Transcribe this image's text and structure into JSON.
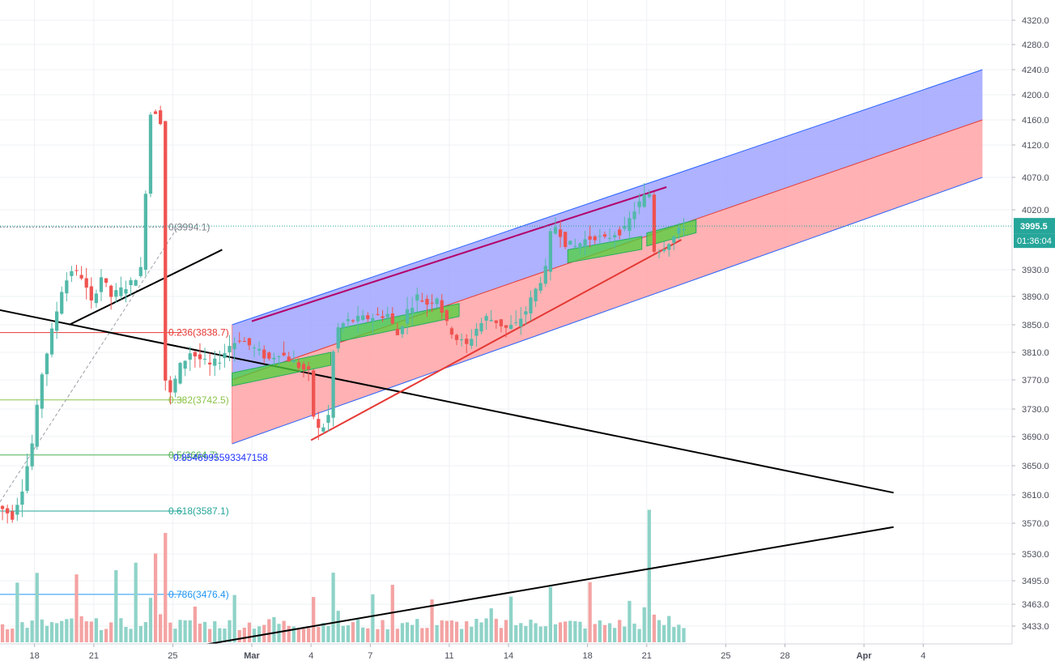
{
  "chart_data": {
    "type": "candlestick",
    "title": "",
    "xlabel": "",
    "ylabel": "",
    "x_tick_labels": [
      "18",
      "21",
      "25",
      "Mar",
      "4",
      "7",
      "11",
      "14",
      "18",
      "21",
      "25",
      "28",
      "Apr",
      "4"
    ],
    "x_tick_dates": [
      "2019-02-18",
      "2019-02-21",
      "2019-02-25",
      "2019-03-01",
      "2019-03-04",
      "2019-03-07",
      "2019-03-11",
      "2019-03-14",
      "2019-03-18",
      "2019-03-21",
      "2019-03-25",
      "2019-03-28",
      "2019-04-01",
      "2019-04-04"
    ],
    "y_ticks": [
      3433.0,
      3463.0,
      3495.0,
      3530.0,
      3570.0,
      3610.0,
      3650.0,
      3690.0,
      3730.0,
      3770.0,
      3810.0,
      3850.0,
      3890.0,
      3930.0,
      4020.0,
      4070.0,
      4120.0,
      4160.0,
      4200.0,
      4240.0,
      4280.0,
      4320.0
    ],
    "y_tick_labels": [
      "3433.0",
      "3463.0",
      "3495.0",
      "3530.0",
      "3570.0",
      "3610.0",
      "3650.0",
      "3690.0",
      "3730.0",
      "3770.0",
      "3810.0",
      "3850.0",
      "3890.0",
      "3930.0",
      "4020.0",
      "4070.0",
      "4120.0",
      "4160.0",
      "4200.0",
      "4240.0",
      "4280.0",
      "4320.0"
    ],
    "price": {
      "last": "3995.5",
      "countdown": "01:36:04",
      "up_color": "#53b9a9",
      "down_color": "#ef5350"
    },
    "fibonacci": [
      {
        "level": 0,
        "label": "0(3994.1)",
        "value": 3994.1,
        "color": "#787b86"
      },
      {
        "level": 0.236,
        "label": "0.236(3838.7)",
        "value": 3838.7,
        "color": "#e53935"
      },
      {
        "level": 0.382,
        "label": "0.382(3742.5)",
        "value": 3742.5,
        "color": "#8bc34a"
      },
      {
        "level": 0.5,
        "label": "0.5(3664.7)",
        "value": 3664.7,
        "color": "#4caf50"
      },
      {
        "level": 0.618,
        "label": "0.618(3587.1)",
        "value": 3587.1,
        "color": "#26a69a"
      },
      {
        "level": 0.786,
        "label": "0.786(3476.4)",
        "value": 3476.4,
        "color": "#2196f3"
      }
    ],
    "channel_annotation": "0.8546995593347158",
    "series": [
      {
        "kind": "candle_path",
        "waypoints": [
          [
            "2019-02-16T00:00",
            3600
          ],
          [
            "2019-02-17T00:00",
            3580
          ],
          [
            "2019-02-17T12:00",
            3620
          ],
          [
            "2019-02-18T00:00",
            3680
          ],
          [
            "2019-02-18T12:00",
            3780
          ],
          [
            "2019-02-19T00:00",
            3840
          ],
          [
            "2019-02-19T12:00",
            3900
          ],
          [
            "2019-02-20T00:00",
            3930
          ],
          [
            "2019-02-20T12:00",
            3920
          ],
          [
            "2019-02-21T00:00",
            3880
          ],
          [
            "2019-02-21T12:00",
            3920
          ],
          [
            "2019-02-22T00:00",
            3890
          ],
          [
            "2019-02-22T12:00",
            3900
          ],
          [
            "2019-02-23T00:00",
            3910
          ],
          [
            "2019-02-23T12:00",
            3930
          ],
          [
            "2019-02-24T00:00",
            4170
          ],
          [
            "2019-02-24T08:00",
            4175
          ],
          [
            "2019-02-24T14:00",
            4150
          ],
          [
            "2019-02-24T18:00",
            3770
          ],
          [
            "2019-02-25T00:00",
            3750
          ],
          [
            "2019-02-25T12:00",
            3790
          ],
          [
            "2019-02-26T00:00",
            3810
          ],
          [
            "2019-02-26T12:00",
            3800
          ],
          [
            "2019-02-27T00:00",
            3790
          ],
          [
            "2019-02-27T12:00",
            3800
          ],
          [
            "2019-02-28T00:00",
            3820
          ],
          [
            "2019-02-28T12:00",
            3830
          ],
          [
            "2019-03-01T00:00",
            3820
          ],
          [
            "2019-03-01T12:00",
            3810
          ],
          [
            "2019-03-02T00:00",
            3800
          ],
          [
            "2019-03-02T12:00",
            3810
          ],
          [
            "2019-03-03T00:00",
            3800
          ],
          [
            "2019-03-03T12:00",
            3790
          ],
          [
            "2019-03-04T00:00",
            3780
          ],
          [
            "2019-03-04T08:00",
            3700
          ],
          [
            "2019-03-04T16:00",
            3700
          ],
          [
            "2019-03-05T00:00",
            3720
          ],
          [
            "2019-03-05T08:00",
            3840
          ],
          [
            "2019-03-05T16:00",
            3850
          ],
          [
            "2019-03-06T00:00",
            3855
          ],
          [
            "2019-03-07T00:00",
            3860
          ],
          [
            "2019-03-08T00:00",
            3865
          ],
          [
            "2019-03-08T12:00",
            3835
          ],
          [
            "2019-03-09T00:00",
            3870
          ],
          [
            "2019-03-09T12:00",
            3890
          ],
          [
            "2019-03-10T00:00",
            3880
          ],
          [
            "2019-03-10T12:00",
            3890
          ],
          [
            "2019-03-11T00:00",
            3850
          ],
          [
            "2019-03-11T12:00",
            3830
          ],
          [
            "2019-03-12T00:00",
            3820
          ],
          [
            "2019-03-12T12:00",
            3845
          ],
          [
            "2019-03-13T00:00",
            3860
          ],
          [
            "2019-03-13T12:00",
            3855
          ],
          [
            "2019-03-14T00:00",
            3845
          ],
          [
            "2019-03-14T12:00",
            3850
          ],
          [
            "2019-03-15T00:00",
            3870
          ],
          [
            "2019-03-15T12:00",
            3900
          ],
          [
            "2019-03-16T00:00",
            3930
          ],
          [
            "2019-03-16T08:00",
            4000
          ],
          [
            "2019-03-16T16:00",
            3990
          ],
          [
            "2019-03-17T00:00",
            3970
          ],
          [
            "2019-03-17T12:00",
            3965
          ],
          [
            "2019-03-18T00:00",
            3975
          ],
          [
            "2019-03-18T12:00",
            3980
          ],
          [
            "2019-03-19T00:00",
            3975
          ],
          [
            "2019-03-19T12:00",
            3985
          ],
          [
            "2019-03-20T00:00",
            3990
          ],
          [
            "2019-03-20T12:00",
            4020
          ],
          [
            "2019-03-21T00:00",
            4040
          ],
          [
            "2019-03-21T06:00",
            4045
          ],
          [
            "2019-03-21T10:00",
            3960
          ],
          [
            "2019-03-21T18:00",
            3960
          ],
          [
            "2019-03-22T00:00",
            3965
          ],
          [
            "2019-03-22T12:00",
            3980
          ],
          [
            "2019-03-23T00:00",
            3995.5
          ]
        ]
      }
    ],
    "volume_profile": [
      {
        "date": "2019-02-17",
        "level": 0.45
      },
      {
        "date": "2019-02-18",
        "level": 0.5
      },
      {
        "date": "2019-02-20",
        "level": 0.6
      },
      {
        "date": "2019-02-22",
        "level": 0.45
      },
      {
        "date": "2019-02-23",
        "level": 0.55
      },
      {
        "date": "2019-02-24",
        "level": 1.0
      },
      {
        "date": "2019-02-24T12:00",
        "level": 0.75
      },
      {
        "date": "2019-02-26",
        "level": 0.3
      },
      {
        "date": "2019-02-28",
        "level": 0.35
      },
      {
        "date": "2019-03-02",
        "level": 0.2
      },
      {
        "date": "2019-03-04",
        "level": 0.4
      },
      {
        "date": "2019-03-05",
        "level": 0.7
      },
      {
        "date": "2019-03-07",
        "level": 0.3
      },
      {
        "date": "2019-03-08",
        "level": 0.5
      },
      {
        "date": "2019-03-10",
        "level": 0.35
      },
      {
        "date": "2019-03-13",
        "level": 0.25
      },
      {
        "date": "2019-03-14",
        "level": 0.55
      },
      {
        "date": "2019-03-16",
        "level": 0.6
      },
      {
        "date": "2019-03-18",
        "level": 0.4
      },
      {
        "date": "2019-03-20",
        "level": 0.3
      },
      {
        "date": "2019-03-21",
        "level": 0.85
      },
      {
        "date": "2019-03-22",
        "level": 0.2
      }
    ],
    "channel": {
      "start_date": "2019-02-28",
      "end_date": "2019-04-07",
      "upper_start": 3850,
      "upper_end": 4240,
      "mid_start": 3770,
      "mid_end": 4160,
      "lower_start": 3680,
      "lower_end": 4070,
      "upper_fill": "#a0a4ff",
      "lower_fill": "#ffa3a6",
      "line_color": "#2962ff",
      "mid_color": "#e53935"
    },
    "trendlines": [
      {
        "from": [
          "2019-02-15T12:00",
          3875
        ],
        "to": [
          "2019-04-02T12:00",
          3613
        ],
        "color": "#000000"
      },
      {
        "from": [
          "2019-02-19T18:00",
          3850
        ],
        "to": [
          "2019-02-27T12:00",
          3960
        ],
        "color": "#000000"
      },
      {
        "from": [
          "2019-02-25T00:00",
          3400
        ],
        "to": [
          "2019-04-02T12:00",
          3565
        ],
        "color": "#000000"
      },
      {
        "from": [
          "2019-03-04T00:00",
          3685
        ],
        "to": [
          "2019-03-22T18:00",
          3975
        ],
        "color": "#e53935"
      },
      {
        "from": [
          "2019-03-01T00:00",
          3855
        ],
        "to": [
          "2019-03-22T00:00",
          4055
        ],
        "color": "#b3006b"
      }
    ],
    "highlight_boxes": [
      {
        "from": [
          "2019-02-28T00:00",
          3780
        ],
        "to": [
          "2019-03-05T00:00",
          3810
        ]
      },
      {
        "from": [
          "2019-03-05T12:00",
          3845
        ],
        "to": [
          "2019-03-11T12:00",
          3880
        ]
      },
      {
        "from": [
          "2019-03-17T00:00",
          3960
        ],
        "to": [
          "2019-03-20T18:00",
          3980
        ]
      },
      {
        "from": [
          "2019-03-21T00:00",
          3985
        ],
        "to": [
          "2019-03-23T12:00",
          4005
        ]
      }
    ],
    "ylim": [
      3405,
      4340
    ],
    "xlim": [
      "2019-02-16T06:00",
      "2019-04-08T12:00"
    ],
    "grid": true
  }
}
